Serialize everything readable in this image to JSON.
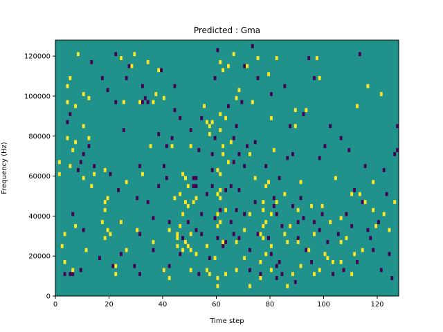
{
  "chart_data": {
    "type": "heatmap",
    "title": "Predicted : Gma",
    "xlabel": "Time step",
    "ylabel": "Frequency (Hz)",
    "xlim": [
      0,
      128
    ],
    "ylim": [
      0,
      128000
    ],
    "x_ticks": [
      0,
      20,
      40,
      60,
      80,
      100,
      120
    ],
    "y_ticks": [
      0,
      20000,
      40000,
      60000,
      80000,
      100000,
      120000
    ],
    "colormap": "viridis",
    "colors": {
      "background": "#21918c",
      "high": "#fde725",
      "low": "#440154"
    },
    "cell_height_hz": 2000,
    "yellow_cells": [
      [
        1,
        60000
      ],
      [
        1,
        66000
      ],
      [
        2,
        24000
      ],
      [
        3,
        16000
      ],
      [
        3,
        30000
      ],
      [
        4,
        96000
      ],
      [
        4,
        78000
      ],
      [
        4,
        104000
      ],
      [
        5,
        108000
      ],
      [
        5,
        64000
      ],
      [
        6,
        12000
      ],
      [
        6,
        72000
      ],
      [
        7,
        34000
      ],
      [
        7,
        76000
      ],
      [
        7,
        94000
      ],
      [
        8,
        120000
      ],
      [
        10,
        100000
      ],
      [
        10,
        84000
      ],
      [
        10,
        58000
      ],
      [
        11,
        22000
      ],
      [
        12,
        98000
      ],
      [
        12,
        78000
      ],
      [
        13,
        54000
      ],
      [
        14,
        60000
      ],
      [
        17,
        36000
      ],
      [
        18,
        28000
      ],
      [
        18,
        42000
      ],
      [
        18,
        46000
      ],
      [
        18,
        62000
      ],
      [
        19,
        48000
      ],
      [
        19,
        32000
      ],
      [
        20,
        30000
      ],
      [
        22,
        14000
      ],
      [
        22,
        10000
      ],
      [
        24,
        118000
      ],
      [
        24,
        36000
      ],
      [
        25,
        96000
      ],
      [
        26,
        56000
      ],
      [
        26,
        22000
      ],
      [
        28,
        114000
      ],
      [
        29,
        120000
      ],
      [
        30,
        32000
      ],
      [
        31,
        96000
      ],
      [
        32,
        60000
      ],
      [
        34,
        116000
      ],
      [
        35,
        74000
      ],
      [
        36,
        26000
      ],
      [
        36,
        96000
      ],
      [
        37,
        100000
      ],
      [
        38,
        112000
      ],
      [
        40,
        98000
      ],
      [
        40,
        12000
      ],
      [
        42,
        8000
      ],
      [
        42,
        32000
      ],
      [
        43,
        74000
      ],
      [
        44,
        48000
      ],
      [
        45,
        24000
      ],
      [
        45,
        28000
      ],
      [
        45,
        30000
      ],
      [
        46,
        34000
      ],
      [
        46,
        50000
      ],
      [
        47,
        60000
      ],
      [
        47,
        22000
      ],
      [
        47,
        40000
      ],
      [
        48,
        26000
      ],
      [
        48,
        58000
      ],
      [
        48,
        46000
      ],
      [
        49,
        44000
      ],
      [
        49,
        54000
      ],
      [
        49,
        24000
      ],
      [
        50,
        22000
      ],
      [
        50,
        12000
      ],
      [
        50,
        30000
      ],
      [
        50,
        74000
      ],
      [
        51,
        46000
      ],
      [
        52,
        48000
      ],
      [
        52,
        20000
      ],
      [
        55,
        94000
      ],
      [
        56,
        12000
      ],
      [
        56,
        24000
      ],
      [
        56,
        86000
      ],
      [
        57,
        80000
      ],
      [
        57,
        10000
      ],
      [
        57,
        84000
      ],
      [
        58,
        86000
      ],
      [
        59,
        18000
      ],
      [
        60,
        50000
      ],
      [
        60,
        40000
      ],
      [
        60,
        34000
      ],
      [
        60,
        62000
      ],
      [
        60,
        4000
      ],
      [
        60,
        8000
      ],
      [
        61,
        60000
      ],
      [
        61,
        48000
      ],
      [
        61,
        36000
      ],
      [
        61,
        52000
      ],
      [
        61,
        82000
      ],
      [
        61,
        90000
      ],
      [
        61,
        116000
      ],
      [
        62,
        112000
      ],
      [
        62,
        70000
      ],
      [
        62,
        74000
      ],
      [
        62,
        26000
      ],
      [
        63,
        10000
      ],
      [
        63,
        42000
      ],
      [
        63,
        88000
      ],
      [
        64,
        114000
      ],
      [
        64,
        66000
      ],
      [
        65,
        76000
      ],
      [
        66,
        120000
      ],
      [
        67,
        12000
      ],
      [
        67,
        26000
      ],
      [
        67,
        98000
      ],
      [
        68,
        102000
      ],
      [
        70,
        18000
      ],
      [
        70,
        32000
      ],
      [
        71,
        114000
      ],
      [
        72,
        40000
      ],
      [
        72,
        70000
      ],
      [
        72,
        4000
      ],
      [
        73,
        96000
      ],
      [
        74,
        58000
      ],
      [
        75,
        118000
      ],
      [
        76,
        30000
      ],
      [
        76,
        16000
      ],
      [
        76,
        8000
      ],
      [
        77,
        28000
      ],
      [
        77,
        34000
      ],
      [
        77,
        42000
      ],
      [
        77,
        46000
      ],
      [
        78,
        54000
      ],
      [
        78,
        36000
      ],
      [
        78,
        20000
      ],
      [
        79,
        110000
      ],
      [
        79,
        56000
      ],
      [
        80,
        12000
      ],
      [
        80,
        40000
      ],
      [
        80,
        24000
      ],
      [
        80,
        88000
      ],
      [
        81,
        72000
      ],
      [
        82,
        118000
      ],
      [
        82,
        46000
      ],
      [
        85,
        50000
      ],
      [
        85,
        30000
      ],
      [
        86,
        26000
      ],
      [
        86,
        4000
      ],
      [
        87,
        34000
      ],
      [
        88,
        10000
      ],
      [
        89,
        92000
      ],
      [
        89,
        84000
      ],
      [
        90,
        42000
      ],
      [
        90,
        26000
      ],
      [
        91,
        14000
      ],
      [
        91,
        56000
      ],
      [
        93,
        92000
      ],
      [
        94,
        22000
      ],
      [
        95,
        44000
      ],
      [
        96,
        10000
      ],
      [
        96,
        30000
      ],
      [
        97,
        118000
      ],
      [
        98,
        108000
      ],
      [
        98,
        12000
      ],
      [
        99,
        44000
      ],
      [
        100,
        20000
      ],
      [
        101,
        18000
      ],
      [
        102,
        36000
      ],
      [
        103,
        16000
      ],
      [
        104,
        58000
      ],
      [
        106,
        16000
      ],
      [
        106,
        38000
      ],
      [
        106,
        26000
      ],
      [
        108,
        28000
      ],
      [
        110,
        10000
      ],
      [
        110,
        50000
      ],
      [
        111,
        20000
      ],
      [
        112,
        94000
      ],
      [
        113,
        50000
      ],
      [
        114,
        22000
      ],
      [
        115,
        46000
      ],
      [
        116,
        104000
      ],
      [
        118,
        56000
      ],
      [
        118,
        42000
      ],
      [
        119,
        34000
      ],
      [
        121,
        100000
      ],
      [
        122,
        40000
      ],
      [
        124,
        32000
      ],
      [
        126,
        46000
      ]
    ],
    "purple_cells": [
      [
        3,
        10000
      ],
      [
        4,
        86000
      ],
      [
        5,
        90000
      ],
      [
        5,
        10000
      ],
      [
        6,
        10000
      ],
      [
        6,
        40000
      ],
      [
        8,
        62000
      ],
      [
        9,
        12000
      ],
      [
        9,
        66000
      ],
      [
        10,
        70000
      ],
      [
        10,
        32000
      ],
      [
        12,
        74000
      ],
      [
        13,
        116000
      ],
      [
        14,
        64000
      ],
      [
        16,
        18000
      ],
      [
        17,
        108000
      ],
      [
        19,
        102000
      ],
      [
        20,
        60000
      ],
      [
        21,
        14000
      ],
      [
        22,
        96000
      ],
      [
        22,
        120000
      ],
      [
        23,
        52000
      ],
      [
        24,
        20000
      ],
      [
        25,
        82000
      ],
      [
        26,
        108000
      ],
      [
        27,
        114000
      ],
      [
        29,
        14000
      ],
      [
        30,
        48000
      ],
      [
        31,
        30000
      ],
      [
        31,
        10000
      ],
      [
        31,
        64000
      ],
      [
        32,
        96000
      ],
      [
        32,
        104000
      ],
      [
        33,
        98000
      ],
      [
        34,
        46000
      ],
      [
        34,
        96000
      ],
      [
        36,
        22000
      ],
      [
        36,
        38000
      ],
      [
        38,
        54000
      ],
      [
        38,
        80000
      ],
      [
        39,
        112000
      ],
      [
        40,
        64000
      ],
      [
        40,
        12000
      ],
      [
        41,
        58000
      ],
      [
        41,
        74000
      ],
      [
        42,
        14000
      ],
      [
        42,
        36000
      ],
      [
        43,
        78000
      ],
      [
        44,
        92000
      ],
      [
        44,
        104000
      ],
      [
        46,
        20000
      ],
      [
        46,
        88000
      ],
      [
        47,
        28000
      ],
      [
        47,
        40000
      ],
      [
        49,
        36000
      ],
      [
        50,
        82000
      ],
      [
        51,
        58000
      ],
      [
        51,
        54000
      ],
      [
        51,
        46000
      ],
      [
        52,
        58000
      ],
      [
        52,
        54000
      ],
      [
        52,
        32000
      ],
      [
        53,
        72000
      ],
      [
        53,
        10000
      ],
      [
        54,
        88000
      ],
      [
        54,
        40000
      ],
      [
        54,
        30000
      ],
      [
        56,
        50000
      ],
      [
        57,
        18000
      ],
      [
        58,
        62000
      ],
      [
        58,
        54000
      ],
      [
        58,
        70000
      ],
      [
        59,
        38000
      ],
      [
        59,
        78000
      ],
      [
        59,
        108000
      ],
      [
        60,
        122000
      ],
      [
        60,
        28000
      ],
      [
        61,
        42000
      ],
      [
        62,
        24000
      ],
      [
        63,
        26000
      ],
      [
        63,
        52000
      ],
      [
        64,
        94000
      ],
      [
        65,
        36000
      ],
      [
        65,
        54000
      ],
      [
        66,
        30000
      ],
      [
        66,
        66000
      ],
      [
        66,
        78000
      ],
      [
        67,
        12000
      ],
      [
        67,
        42000
      ],
      [
        67,
        84000
      ],
      [
        68,
        70000
      ],
      [
        68,
        52000
      ],
      [
        68,
        28000
      ],
      [
        69,
        96000
      ],
      [
        70,
        114000
      ],
      [
        70,
        64000
      ],
      [
        70,
        40000
      ],
      [
        71,
        74000
      ],
      [
        72,
        22000
      ],
      [
        72,
        12000
      ],
      [
        73,
        124000
      ],
      [
        74,
        76000
      ],
      [
        74,
        46000
      ],
      [
        75,
        108000
      ],
      [
        75,
        30000
      ],
      [
        76,
        10000
      ],
      [
        78,
        64000
      ],
      [
        79,
        28000
      ],
      [
        80,
        20000
      ],
      [
        80,
        100000
      ],
      [
        81,
        44000
      ],
      [
        81,
        48000
      ],
      [
        82,
        40000
      ],
      [
        82,
        8000
      ],
      [
        82,
        14000
      ],
      [
        83,
        58000
      ],
      [
        83,
        16000
      ],
      [
        84,
        34000
      ],
      [
        84,
        10000
      ],
      [
        85,
        104000
      ],
      [
        86,
        68000
      ],
      [
        87,
        84000
      ],
      [
        88,
        70000
      ],
      [
        88,
        44000
      ],
      [
        89,
        6000
      ],
      [
        90,
        28000
      ],
      [
        90,
        36000
      ],
      [
        91,
        48000
      ],
      [
        92,
        90000
      ],
      [
        92,
        38000
      ],
      [
        93,
        22000
      ],
      [
        94,
        118000
      ],
      [
        95,
        16000
      ],
      [
        96,
        36000
      ],
      [
        96,
        108000
      ],
      [
        98,
        32000
      ],
      [
        98,
        68000
      ],
      [
        99,
        40000
      ],
      [
        100,
        74000
      ],
      [
        101,
        26000
      ],
      [
        102,
        84000
      ],
      [
        103,
        10000
      ],
      [
        105,
        30000
      ],
      [
        106,
        78000
      ],
      [
        107,
        12000
      ],
      [
        108,
        40000
      ],
      [
        109,
        72000
      ],
      [
        110,
        34000
      ],
      [
        111,
        52000
      ],
      [
        112,
        16000
      ],
      [
        113,
        120000
      ],
      [
        114,
        46000
      ],
      [
        115,
        64000
      ],
      [
        116,
        32000
      ],
      [
        117,
        28000
      ],
      [
        118,
        22000
      ],
      [
        120,
        36000
      ],
      [
        121,
        12000
      ],
      [
        122,
        62000
      ],
      [
        123,
        50000
      ],
      [
        124,
        20000
      ],
      [
        125,
        8000
      ],
      [
        126,
        70000
      ],
      [
        127,
        84000
      ],
      [
        127,
        72000
      ]
    ]
  }
}
